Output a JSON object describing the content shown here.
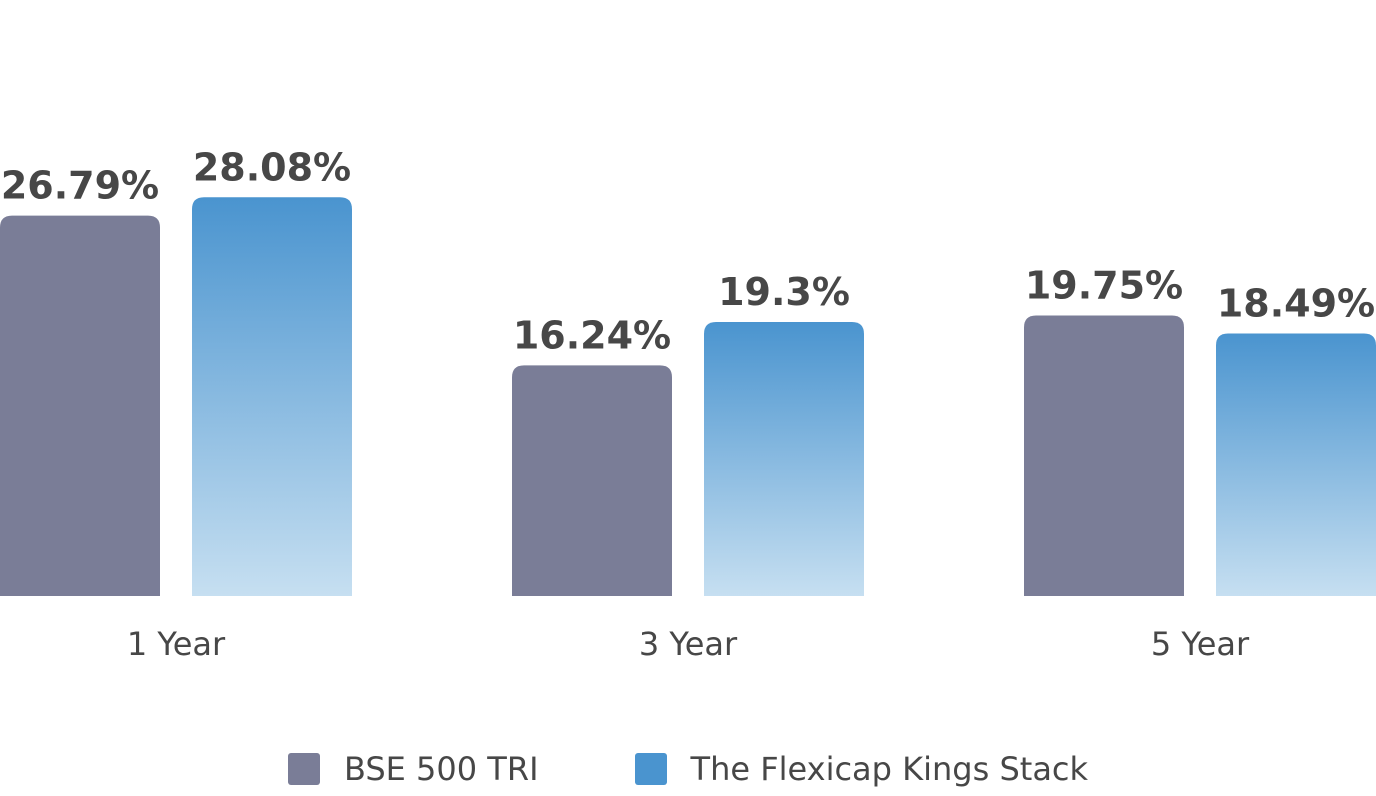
{
  "chart_data": {
    "type": "bar",
    "categories": [
      "1 Year",
      "3 Year",
      "5 Year"
    ],
    "series": [
      {
        "name": "BSE 500 TRI",
        "values": [
          26.79,
          16.24,
          19.75
        ],
        "labels": [
          "26.79%",
          "16.24%",
          "19.75%"
        ],
        "color": "#7a7d97"
      },
      {
        "name": "The Flexicap Kings Stack",
        "values": [
          28.08,
          19.3,
          18.49
        ],
        "labels": [
          "28.08%",
          "19.3%",
          "18.49%"
        ],
        "color": "#4a94cf",
        "color_light": "#c6dff1"
      }
    ],
    "ylim": [
      0,
      30
    ],
    "grid": false,
    "legend_position": "bottom"
  }
}
